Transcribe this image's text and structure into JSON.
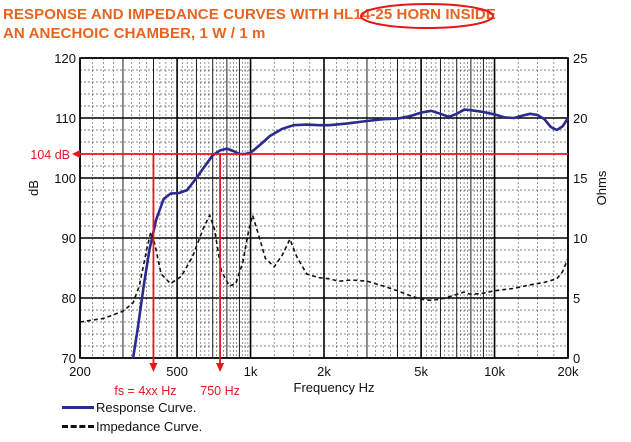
{
  "title_line1": "RESPONSE AND IMPEDANCE CURVES WITH HL14-25 HORN INSIDE",
  "title_line2": "AN ANECHOIC CHAMBER, 1 W / 1 m",
  "colors": {
    "title": "#e8641e",
    "response": "#2b2a8f",
    "impedance": "#111111",
    "marker": "#e8141e"
  },
  "chart_data": {
    "type": "line",
    "xlabel": "Frequency Hz",
    "ylabel_left": "dB",
    "ylabel_right": "Ohms",
    "x_scale": "log",
    "xlim": [
      200,
      20000
    ],
    "ylim_left": [
      70,
      120
    ],
    "ylim_right": [
      0,
      25
    ],
    "grid": true,
    "x_ticks": [
      {
        "v": 200,
        "label": "200"
      },
      {
        "v": 500,
        "label": "500"
      },
      {
        "v": 1000,
        "label": "1k"
      },
      {
        "v": 2000,
        "label": "2k"
      },
      {
        "v": 5000,
        "label": "5k"
      },
      {
        "v": 10000,
        "label": "10k"
      },
      {
        "v": 20000,
        "label": "20k"
      }
    ],
    "y_ticks_left": [
      70,
      80,
      90,
      100,
      110,
      120
    ],
    "y_ticks_right": [
      0,
      5,
      10,
      15,
      20,
      25
    ],
    "series": [
      {
        "name": "Response Curve.",
        "axis": "left",
        "style": "solid",
        "points": [
          [
            330,
            70
          ],
          [
            345,
            75
          ],
          [
            365,
            82
          ],
          [
            385,
            88
          ],
          [
            410,
            93
          ],
          [
            440,
            96.5
          ],
          [
            470,
            97.4
          ],
          [
            510,
            97.5
          ],
          [
            550,
            98
          ],
          [
            600,
            100
          ],
          [
            650,
            102
          ],
          [
            700,
            103.8
          ],
          [
            750,
            104.6
          ],
          [
            800,
            104.9
          ],
          [
            850,
            104.5
          ],
          [
            900,
            104
          ],
          [
            950,
            104
          ],
          [
            1000,
            104.2
          ],
          [
            1100,
            105.6
          ],
          [
            1200,
            107
          ],
          [
            1350,
            108.2
          ],
          [
            1500,
            108.8
          ],
          [
            1700,
            108.9
          ],
          [
            1900,
            108.8
          ],
          [
            2100,
            108.8
          ],
          [
            2500,
            109.1
          ],
          [
            3000,
            109.5
          ],
          [
            3500,
            109.8
          ],
          [
            4000,
            109.9
          ],
          [
            4500,
            110.3
          ],
          [
            5000,
            110.9
          ],
          [
            5500,
            111.2
          ],
          [
            6000,
            110.7
          ],
          [
            6500,
            110.2
          ],
          [
            7000,
            110.7
          ],
          [
            7500,
            111.4
          ],
          [
            8000,
            111.3
          ],
          [
            9000,
            111
          ],
          [
            10000,
            110.6
          ],
          [
            11000,
            110.1
          ],
          [
            12000,
            110
          ],
          [
            13000,
            110.4
          ],
          [
            14000,
            110.7
          ],
          [
            15000,
            110.5
          ],
          [
            16000,
            109.8
          ],
          [
            17000,
            108.5
          ],
          [
            18000,
            108
          ],
          [
            19000,
            108.6
          ],
          [
            20000,
            110
          ]
        ]
      },
      {
        "name": "Impedance Curve.",
        "axis": "right",
        "style": "dashed",
        "points": [
          [
            200,
            3
          ],
          [
            250,
            3.3
          ],
          [
            300,
            3.9
          ],
          [
            330,
            4.6
          ],
          [
            350,
            6
          ],
          [
            375,
            9
          ],
          [
            390,
            10.5
          ],
          [
            405,
            9.5
          ],
          [
            430,
            7
          ],
          [
            470,
            6.2
          ],
          [
            520,
            6.8
          ],
          [
            580,
            8.5
          ],
          [
            640,
            10.8
          ],
          [
            680,
            11.9
          ],
          [
            710,
            10.8
          ],
          [
            760,
            7.2
          ],
          [
            820,
            6
          ],
          [
            870,
            6.2
          ],
          [
            930,
            8
          ],
          [
            980,
            10.5
          ],
          [
            1020,
            11.9
          ],
          [
            1070,
            10.5
          ],
          [
            1150,
            8.3
          ],
          [
            1250,
            7.6
          ],
          [
            1350,
            8.6
          ],
          [
            1450,
            9.9
          ],
          [
            1550,
            8.4
          ],
          [
            1700,
            7
          ],
          [
            1900,
            6.7
          ],
          [
            2100,
            6.6
          ],
          [
            2300,
            6.4
          ],
          [
            2600,
            6.5
          ],
          [
            3000,
            6.4
          ],
          [
            3500,
            6
          ],
          [
            4000,
            5.6
          ],
          [
            4500,
            5.2
          ],
          [
            5000,
            4.9
          ],
          [
            5500,
            4.8
          ],
          [
            6000,
            4.9
          ],
          [
            6500,
            5.1
          ],
          [
            7000,
            5.3
          ],
          [
            7500,
            5.5
          ],
          [
            8000,
            5.3
          ],
          [
            9000,
            5.4
          ],
          [
            10000,
            5.6
          ],
          [
            12000,
            5.8
          ],
          [
            14000,
            6.1
          ],
          [
            16000,
            6.3
          ],
          [
            18000,
            6.6
          ],
          [
            19000,
            7.2
          ],
          [
            20000,
            8.3
          ]
        ]
      }
    ],
    "annotations": {
      "h_marker": {
        "value": 104,
        "label": "104 dB"
      },
      "v_markers": [
        {
          "value": 400,
          "label": "fs = 4xx Hz"
        },
        {
          "value": 750,
          "label": "750 Hz"
        }
      ]
    },
    "legend": {
      "placement": "bottom-left"
    }
  }
}
